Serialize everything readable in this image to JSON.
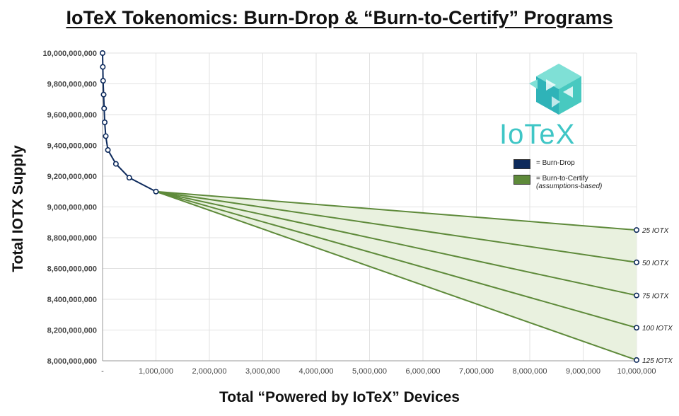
{
  "chart_data": {
    "type": "line",
    "title": "IoTeX Tokenomics: Burn-Drop & “Burn-to-Certify” Programs",
    "xlabel": "Total “Powered by IoTeX” Devices",
    "ylabel": "Total IOTX Supply",
    "xlim": [
      0,
      10000000
    ],
    "ylim": [
      8000000000,
      10000000000
    ],
    "x_tick_labels": [
      "-",
      "1,000,000",
      "2,000,000",
      "3,000,000",
      "4,000,000",
      "5,000,000",
      "6,000,000",
      "7,000,000",
      "8,000,000",
      "9,000,000",
      "10,000,000"
    ],
    "y_tick_labels": [
      "8,000,000,000",
      "8,200,000,000",
      "8,400,000,000",
      "8,600,000,000",
      "8,800,000,000",
      "9,000,000,000",
      "9,200,000,000",
      "9,400,000,000",
      "9,600,000,000",
      "9,800,000,000",
      "10,000,000,000"
    ],
    "grid": true,
    "series": [
      {
        "name": "Burn-Drop",
        "color": "#0d2a5c",
        "x": [
          0,
          5000,
          10000,
          20000,
          30000,
          40000,
          60000,
          100000,
          250000,
          500000,
          1000000
        ],
        "y": [
          10000000000,
          9910000000,
          9820000000,
          9730000000,
          9640000000,
          9550000000,
          9460000000,
          9370000000,
          9280000000,
          9190000000,
          9100000000
        ]
      },
      {
        "name": "Burn-to-Certify",
        "color": "#5e8a3a",
        "fill": "#e9f1df",
        "lines": [
          {
            "label": "25 IOTX",
            "x": [
              1000000,
              10000000
            ],
            "y": [
              9100000000,
              8850000000
            ]
          },
          {
            "label": "50 IOTX",
            "x": [
              1000000,
              10000000
            ],
            "y": [
              9100000000,
              8640000000
            ]
          },
          {
            "label": "75 IOTX",
            "x": [
              1000000,
              10000000
            ],
            "y": [
              9100000000,
              8425000000
            ]
          },
          {
            "label": "100 IOTX",
            "x": [
              1000000,
              10000000
            ],
            "y": [
              9100000000,
              8215000000
            ]
          },
          {
            "label": "125 IOTX",
            "x": [
              1000000,
              10000000
            ],
            "y": [
              9100000000,
              8005000000
            ]
          }
        ]
      }
    ],
    "legend": {
      "placement": "right",
      "items": [
        {
          "label": "= Burn-Drop",
          "color": "#0d2a5c"
        },
        {
          "label": "= Burn-to-Certify",
          "sublabel": "(assumptions-based)",
          "color": "#5e8a3a"
        }
      ]
    }
  },
  "logo": {
    "text": "IoTeX",
    "icon": "iotex-cube-logo",
    "color": "#3fc6c6"
  }
}
